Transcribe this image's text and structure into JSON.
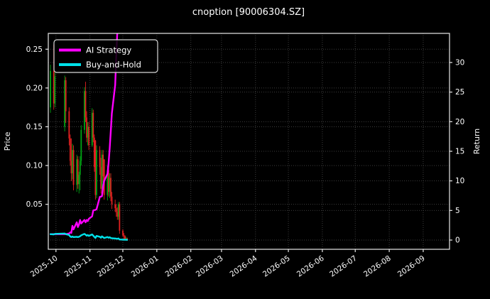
{
  "title": "cnoption [90006304.SZ]",
  "axes": {
    "left_label": "Price",
    "right_label": "Return"
  },
  "legend": [
    {
      "label": "AI Strategy",
      "color": "#ff00ff"
    },
    {
      "label": "Buy-and-Hold",
      "color": "#00e1e9"
    }
  ],
  "colors": {
    "background": "#000000",
    "axis": "#e8e8e8",
    "grid": "#3c3c3c",
    "candle_up": "#00a514",
    "candle_down": "#e02020",
    "ai_strategy": "#ff00ff",
    "buy_and_hold": "#00e1e9",
    "text": "#ffffff"
  },
  "chart_data": {
    "type": "candlestick_with_lines",
    "title": "cnoption [90006304.SZ]",
    "xlabel": "",
    "ylabel_left": "Price",
    "ylabel_right": "Return",
    "grid": true,
    "legend_position": "upper left",
    "x_range": [
      "2025-09-24",
      "2026-09-25"
    ],
    "price_ylim": [
      -0.008,
      0.2704
    ],
    "return_ylim": [
      -1.56,
      34.92
    ],
    "x_ticks": [
      {
        "label": "2025-10",
        "date": "2025-10-01"
      },
      {
        "label": "2025-11",
        "date": "2025-11-01"
      },
      {
        "label": "2025-12",
        "date": "2025-12-01"
      },
      {
        "label": "2026-01",
        "date": "2026-01-01"
      },
      {
        "label": "2026-02",
        "date": "2026-02-01"
      },
      {
        "label": "2026-03",
        "date": "2026-03-01"
      },
      {
        "label": "2026-04",
        "date": "2026-04-01"
      },
      {
        "label": "2026-05",
        "date": "2026-05-01"
      },
      {
        "label": "2026-06",
        "date": "2026-06-01"
      },
      {
        "label": "2026-07",
        "date": "2026-07-01"
      },
      {
        "label": "2026-08",
        "date": "2026-08-01"
      },
      {
        "label": "2026-09",
        "date": "2026-09-01"
      }
    ],
    "price_ticks": [
      {
        "label": "0.05",
        "value": 0.05
      },
      {
        "label": "0.10",
        "value": 0.1
      },
      {
        "label": "0.15",
        "value": 0.15
      },
      {
        "label": "0.20",
        "value": 0.2
      },
      {
        "label": "0.25",
        "value": 0.25
      }
    ],
    "return_ticks": [
      {
        "label": "0",
        "value": 0
      },
      {
        "label": "5",
        "value": 5
      },
      {
        "label": "10",
        "value": 10
      },
      {
        "label": "15",
        "value": 15
      },
      {
        "label": "20",
        "value": 20
      },
      {
        "label": "25",
        "value": 25
      },
      {
        "label": "30",
        "value": 30
      }
    ],
    "candles": [
      [
        "2025-09-26",
        0.175,
        0.23,
        0.168,
        0.222
      ],
      [
        "2025-09-29",
        0.222,
        0.256,
        0.172,
        0.18
      ],
      [
        "2025-09-30",
        0.18,
        0.22,
        0.175,
        0.215
      ],
      [
        "2025-10-09",
        0.15,
        0.216,
        0.144,
        0.21
      ],
      [
        "2025-10-10",
        0.21,
        0.214,
        0.155,
        0.17
      ],
      [
        "2025-10-13",
        0.17,
        0.175,
        0.126,
        0.135
      ],
      [
        "2025-10-14",
        0.135,
        0.14,
        0.1,
        0.106
      ],
      [
        "2025-10-15",
        0.106,
        0.135,
        0.08,
        0.09
      ],
      [
        "2025-10-16",
        0.09,
        0.128,
        0.082,
        0.12
      ],
      [
        "2025-10-17",
        0.12,
        0.126,
        0.068,
        0.075
      ],
      [
        "2025-10-20",
        0.075,
        0.114,
        0.066,
        0.108
      ],
      [
        "2025-10-21",
        0.108,
        0.112,
        0.07,
        0.076
      ],
      [
        "2025-10-22",
        0.076,
        0.092,
        0.064,
        0.088
      ],
      [
        "2025-10-23",
        0.088,
        0.112,
        0.068,
        0.106
      ],
      [
        "2025-10-24",
        0.106,
        0.152,
        0.1,
        0.146
      ],
      [
        "2025-10-27",
        0.146,
        0.201,
        0.141,
        0.196
      ],
      [
        "2025-10-28",
        0.196,
        0.208,
        0.156,
        0.162
      ],
      [
        "2025-10-29",
        0.162,
        0.17,
        0.13,
        0.136
      ],
      [
        "2025-10-30",
        0.136,
        0.156,
        0.126,
        0.15
      ],
      [
        "2025-10-31",
        0.15,
        0.156,
        0.12,
        0.126
      ],
      [
        "2025-11-03",
        0.126,
        0.174,
        0.124,
        0.168
      ],
      [
        "2025-11-04",
        0.168,
        0.172,
        0.13,
        0.136
      ],
      [
        "2025-11-05",
        0.136,
        0.14,
        0.092,
        0.098
      ],
      [
        "2025-11-06",
        0.132,
        0.133,
        0.056,
        0.062
      ],
      [
        "2025-11-07",
        0.062,
        0.126,
        0.058,
        0.12
      ],
      [
        "2025-11-10",
        0.12,
        0.125,
        0.088,
        0.098
      ],
      [
        "2025-11-11",
        0.098,
        0.11,
        0.064,
        0.07
      ],
      [
        "2025-11-12",
        0.07,
        0.12,
        0.064,
        0.114
      ],
      [
        "2025-11-13",
        0.114,
        0.12,
        0.078,
        0.086
      ],
      [
        "2025-11-14",
        0.108,
        0.108,
        0.056,
        0.062
      ],
      [
        "2025-11-17",
        0.062,
        0.1,
        0.055,
        0.094
      ],
      [
        "2025-11-18",
        0.094,
        0.1,
        0.06,
        0.066
      ],
      [
        "2025-11-19",
        0.066,
        0.09,
        0.058,
        0.084
      ],
      [
        "2025-11-20",
        0.084,
        0.09,
        0.054,
        0.06
      ],
      [
        "2025-11-21",
        0.06,
        0.066,
        0.044,
        0.05
      ],
      [
        "2025-11-24",
        0.05,
        0.056,
        0.04,
        0.045
      ],
      [
        "2025-11-25",
        0.045,
        0.05,
        0.034,
        0.04
      ],
      [
        "2025-11-26",
        0.04,
        0.046,
        0.03,
        0.034
      ],
      [
        "2025-11-27",
        0.034,
        0.053,
        0.03,
        0.05
      ],
      [
        "2025-11-28",
        0.05,
        0.053,
        0.012,
        0.016
      ],
      [
        "2025-12-01",
        0.016,
        0.018,
        0.008,
        0.01
      ],
      [
        "2025-12-02",
        0.01,
        0.013,
        0.005,
        0.009
      ],
      [
        "2025-12-03",
        0.009,
        0.01,
        0.004,
        0.005
      ],
      [
        "2025-12-04",
        0.005,
        0.008,
        0.003,
        0.006
      ],
      [
        "2025-12-05",
        0.006,
        0.007,
        0.003,
        0.004
      ]
    ],
    "series": [
      {
        "name": "AI Strategy",
        "axis": "return",
        "color": "#ff00ff",
        "points": [
          [
            "2025-09-26",
            1.0
          ],
          [
            "2025-09-30",
            1.0
          ],
          [
            "2025-10-09",
            1.0
          ],
          [
            "2025-10-10",
            1.0
          ],
          [
            "2025-10-13",
            1.1
          ],
          [
            "2025-10-14",
            1.3
          ],
          [
            "2025-10-15",
            1.2
          ],
          [
            "2025-10-16",
            2.4
          ],
          [
            "2025-10-17",
            1.8
          ],
          [
            "2025-10-20",
            3.0
          ],
          [
            "2025-10-21",
            2.2
          ],
          [
            "2025-10-22",
            2.6
          ],
          [
            "2025-10-23",
            3.4
          ],
          [
            "2025-10-24",
            2.8
          ],
          [
            "2025-10-27",
            3.4
          ],
          [
            "2025-10-28",
            3.0
          ],
          [
            "2025-10-29",
            3.4
          ],
          [
            "2025-10-30",
            3.2
          ],
          [
            "2025-10-31",
            3.6
          ],
          [
            "2025-11-03",
            4.0
          ],
          [
            "2025-11-04",
            5.0
          ],
          [
            "2025-11-05",
            5.05
          ],
          [
            "2025-11-06",
            5.1
          ],
          [
            "2025-11-07",
            5.2
          ],
          [
            "2025-11-10",
            7.3
          ],
          [
            "2025-11-11",
            7.35
          ],
          [
            "2025-11-12",
            7.4
          ],
          [
            "2025-11-13",
            9.1
          ],
          [
            "2025-11-14",
            10.0
          ],
          [
            "2025-11-17",
            11.2
          ],
          [
            "2025-11-18",
            13.0
          ],
          [
            "2025-11-19",
            15.4
          ],
          [
            "2025-11-20",
            18.4
          ],
          [
            "2025-11-21",
            21.4
          ],
          [
            "2025-11-24",
            26.2
          ],
          [
            "2025-11-25",
            31.0
          ],
          [
            "2025-11-26",
            35.5
          ]
        ]
      },
      {
        "name": "Buy-and-Hold",
        "axis": "return",
        "color": "#00e1e9",
        "points": [
          [
            "2025-09-26",
            1.0
          ],
          [
            "2025-09-29",
            0.95
          ],
          [
            "2025-09-30",
            1.05
          ],
          [
            "2025-10-09",
            1.1
          ],
          [
            "2025-10-10",
            1.0
          ],
          [
            "2025-10-13",
            0.85
          ],
          [
            "2025-10-14",
            0.6
          ],
          [
            "2025-10-15",
            0.5
          ],
          [
            "2025-10-16",
            0.6
          ],
          [
            "2025-10-17",
            0.5
          ],
          [
            "2025-10-20",
            0.55
          ],
          [
            "2025-10-21",
            0.5
          ],
          [
            "2025-10-22",
            0.55
          ],
          [
            "2025-10-23",
            0.65
          ],
          [
            "2025-10-24",
            0.8
          ],
          [
            "2025-10-27",
            1.05
          ],
          [
            "2025-10-28",
            0.9
          ],
          [
            "2025-10-29",
            0.75
          ],
          [
            "2025-10-30",
            0.85
          ],
          [
            "2025-10-31",
            0.7
          ],
          [
            "2025-11-03",
            0.95
          ],
          [
            "2025-11-04",
            0.75
          ],
          [
            "2025-11-05",
            0.55
          ],
          [
            "2025-11-06",
            0.35
          ],
          [
            "2025-11-07",
            0.7
          ],
          [
            "2025-11-10",
            0.55
          ],
          [
            "2025-11-11",
            0.4
          ],
          [
            "2025-11-12",
            0.62
          ],
          [
            "2025-11-13",
            0.48
          ],
          [
            "2025-11-14",
            0.35
          ],
          [
            "2025-11-17",
            0.52
          ],
          [
            "2025-11-18",
            0.38
          ],
          [
            "2025-11-19",
            0.48
          ],
          [
            "2025-11-20",
            0.35
          ],
          [
            "2025-11-21",
            0.3
          ],
          [
            "2025-11-24",
            0.27
          ],
          [
            "2025-11-25",
            0.24
          ],
          [
            "2025-11-26",
            0.2
          ],
          [
            "2025-11-27",
            0.28
          ],
          [
            "2025-11-28",
            0.1
          ],
          [
            "2025-12-01",
            0.07
          ],
          [
            "2025-12-02",
            0.06
          ],
          [
            "2025-12-03",
            0.05
          ],
          [
            "2025-12-04",
            0.05
          ],
          [
            "2025-12-05",
            0.04
          ]
        ]
      }
    ]
  }
}
